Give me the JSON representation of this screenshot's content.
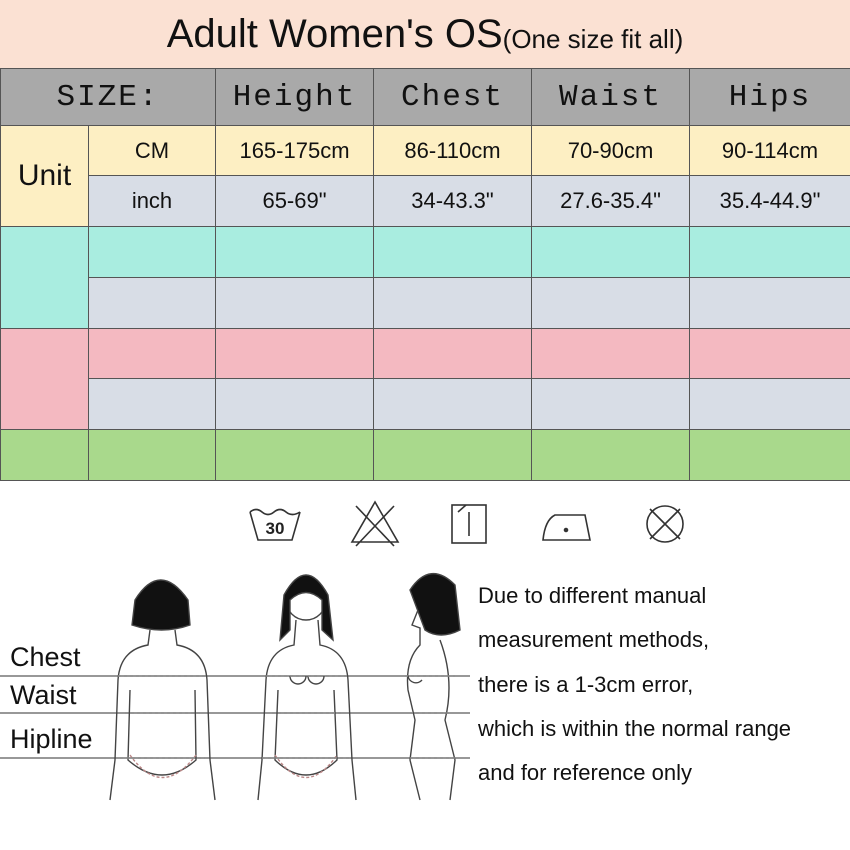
{
  "header": {
    "title": "Adult Women's OS",
    "subtitle": "(One size fit all)"
  },
  "table": {
    "columns": [
      "SIZE:",
      "Height",
      "Chest",
      "Waist",
      "Hips"
    ],
    "unit_label": "Unit",
    "rows": [
      [
        "CM",
        "165-175cm",
        "86-110cm",
        "70-90cm",
        "90-114cm"
      ],
      [
        "inch",
        "65-69\"",
        "34-43.3\"",
        "27.6-35.4\"",
        "35.4-44.9\""
      ]
    ]
  },
  "figure": {
    "labels": [
      "Chest",
      "Waist",
      "Hipline"
    ]
  },
  "note": {
    "lines": [
      "Due to different manual",
      "measurement methods,",
      "there is a 1-3cm error,",
      "which is within the normal range",
      "and for reference only"
    ]
  }
}
